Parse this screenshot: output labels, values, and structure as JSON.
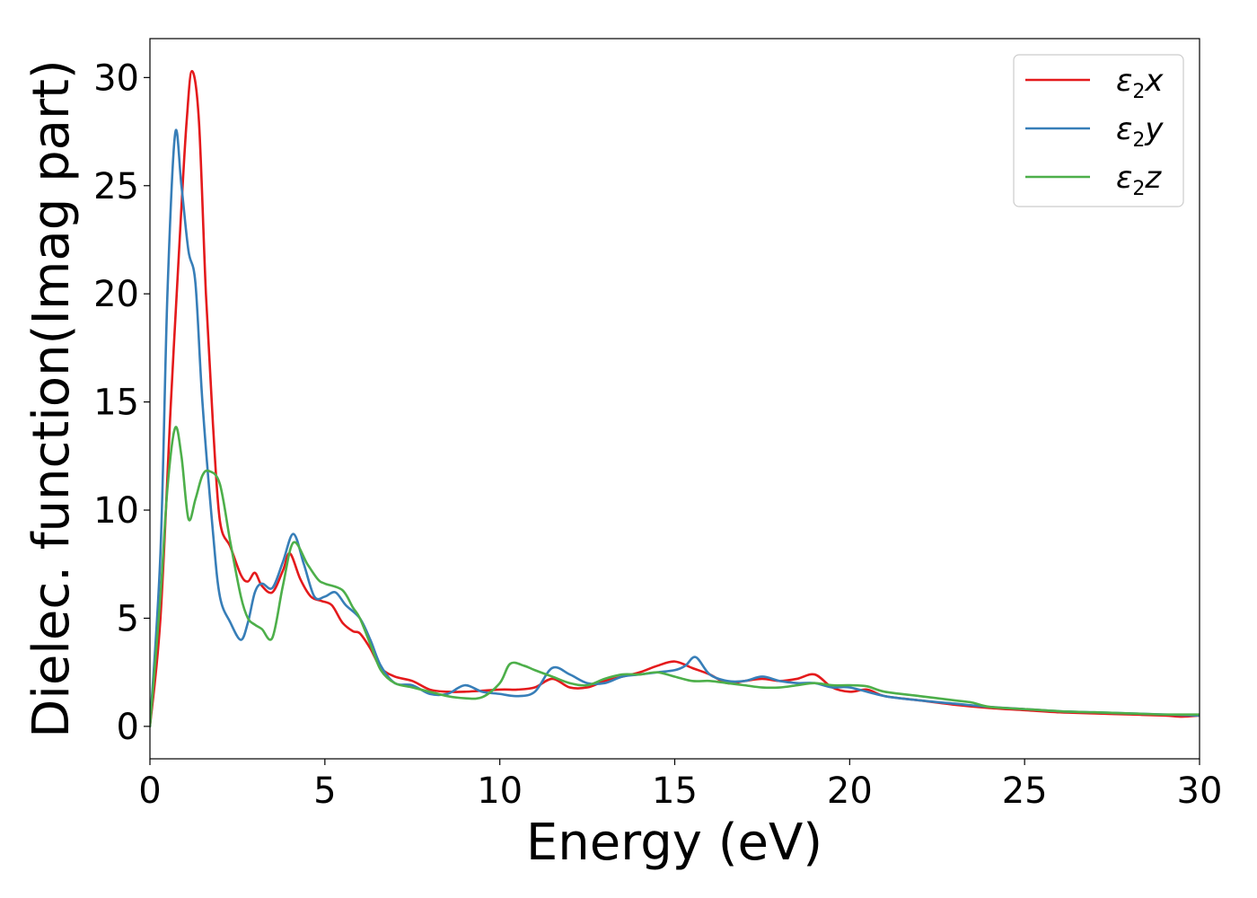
{
  "chart_data": {
    "type": "line",
    "title": "",
    "xlabel": "Energy (eV)",
    "ylabel": "Dielec. function(Imag part)",
    "xlim": [
      0,
      30
    ],
    "ylim": [
      -1.5,
      31.8
    ],
    "xticks": [
      0,
      5,
      10,
      15,
      20,
      25,
      30
    ],
    "yticks": [
      0,
      5,
      10,
      15,
      20,
      25,
      30
    ],
    "grid": false,
    "legend_position": "top-right",
    "legend": [
      {
        "base": "ε",
        "sub": "2",
        "comp": "x"
      },
      {
        "base": "ε",
        "sub": "2",
        "comp": "y"
      },
      {
        "base": "ε",
        "sub": "2",
        "comp": "z"
      }
    ],
    "series": [
      {
        "color": "#e41a1c",
        "x": [
          0,
          0.3,
          0.6,
          0.9,
          1.05,
          1.2,
          1.4,
          1.6,
          1.8,
          2.0,
          2.3,
          2.6,
          2.8,
          3.0,
          3.2,
          3.5,
          3.8,
          4.0,
          4.3,
          4.6,
          4.9,
          5.2,
          5.5,
          5.8,
          6.0,
          6.3,
          6.6,
          7.0,
          7.5,
          8.0,
          8.5,
          9.0,
          10.0,
          10.5,
          11.0,
          11.5,
          12.0,
          12.5,
          13.0,
          13.5,
          14.0,
          14.5,
          15.0,
          15.5,
          16.0,
          16.5,
          17.0,
          17.5,
          18.0,
          18.5,
          19.0,
          19.5,
          20.0,
          20.5,
          21.0,
          22.0,
          23.0,
          24.0,
          25.0,
          26.0,
          27.0,
          28.0,
          29.0,
          29.5,
          30.0
        ],
        "y": [
          0,
          5,
          15,
          24,
          28,
          30.3,
          28,
          20,
          14,
          9.5,
          8.3,
          7,
          6.7,
          7.1,
          6.5,
          6.2,
          7.2,
          8.0,
          6.8,
          6.0,
          5.8,
          5.6,
          4.8,
          4.4,
          4.3,
          3.6,
          2.7,
          2.3,
          2.1,
          1.7,
          1.6,
          1.6,
          1.7,
          1.7,
          1.8,
          2.2,
          1.8,
          1.8,
          2.1,
          2.3,
          2.5,
          2.8,
          3.0,
          2.7,
          2.4,
          2.0,
          2.1,
          2.2,
          2.1,
          2.2,
          2.4,
          1.8,
          1.6,
          1.7,
          1.4,
          1.2,
          1.0,
          0.85,
          0.75,
          0.65,
          0.6,
          0.55,
          0.5,
          0.45,
          0.5
        ]
      },
      {
        "color": "#377eb8",
        "x": [
          0,
          0.3,
          0.5,
          0.72,
          0.9,
          1.1,
          1.3,
          1.5,
          1.8,
          2.0,
          2.3,
          2.6,
          2.8,
          3.0,
          3.2,
          3.5,
          3.8,
          4.1,
          4.4,
          4.7,
          5.0,
          5.3,
          5.6,
          6.0,
          6.3,
          6.6,
          7.0,
          7.5,
          8.0,
          8.5,
          9.0,
          9.5,
          10.0,
          10.5,
          11.0,
          11.5,
          12.0,
          12.5,
          13.0,
          13.5,
          14.0,
          14.5,
          15.0,
          15.3,
          15.6,
          16.0,
          16.5,
          17.0,
          17.5,
          18.0,
          18.5,
          19.0,
          19.5,
          20.0,
          21.0,
          22.0,
          23.0,
          24.0,
          25.0,
          26.0,
          27.0,
          28.0,
          29.0,
          30.0
        ],
        "y": [
          0,
          8,
          20,
          27.4,
          25,
          22,
          20.5,
          15,
          9,
          6,
          4.8,
          4.0,
          4.8,
          6.2,
          6.6,
          6.4,
          7.6,
          8.9,
          7.5,
          6.0,
          6.0,
          6.2,
          5.6,
          5.0,
          4.0,
          2.8,
          2.0,
          1.9,
          1.5,
          1.5,
          1.9,
          1.6,
          1.5,
          1.4,
          1.6,
          2.7,
          2.4,
          2.0,
          2.0,
          2.3,
          2.4,
          2.5,
          2.6,
          2.8,
          3.2,
          2.4,
          2.1,
          2.1,
          2.3,
          2.1,
          2.0,
          2.0,
          1.8,
          1.8,
          1.4,
          1.2,
          1.05,
          0.9,
          0.8,
          0.7,
          0.65,
          0.6,
          0.55,
          0.5
        ]
      },
      {
        "color": "#4daf4a",
        "x": [
          0,
          0.3,
          0.5,
          0.72,
          0.9,
          1.1,
          1.3,
          1.5,
          1.7,
          2.0,
          2.3,
          2.6,
          2.8,
          3.0,
          3.2,
          3.5,
          3.8,
          4.1,
          4.5,
          4.8,
          5.0,
          5.5,
          5.8,
          6.0,
          6.3,
          6.6,
          7.0,
          7.5,
          8.0,
          8.5,
          9.0,
          9.5,
          10.0,
          10.3,
          10.7,
          11.0,
          11.5,
          12.0,
          12.5,
          13.0,
          13.5,
          14.0,
          14.5,
          15.0,
          15.5,
          16.0,
          16.5,
          17.0,
          17.5,
          18.0,
          18.5,
          19.0,
          19.5,
          20.0,
          20.5,
          21.0,
          22.0,
          23.0,
          23.5,
          24.0,
          25.0,
          26.0,
          27.0,
          28.0,
          29.0,
          30.0
        ],
        "y": [
          0,
          6,
          11,
          13.8,
          12.5,
          9.6,
          10.5,
          11.6,
          11.8,
          11.2,
          8.5,
          6.0,
          5.0,
          4.7,
          4.5,
          4.1,
          6.5,
          8.5,
          7.5,
          6.8,
          6.6,
          6.3,
          5.5,
          5.0,
          3.8,
          2.6,
          2.0,
          1.8,
          1.6,
          1.4,
          1.3,
          1.35,
          2.0,
          2.9,
          2.8,
          2.6,
          2.3,
          2.0,
          1.9,
          2.2,
          2.4,
          2.4,
          2.5,
          2.3,
          2.1,
          2.1,
          2.0,
          1.9,
          1.8,
          1.8,
          1.9,
          2.0,
          1.9,
          1.9,
          1.85,
          1.6,
          1.4,
          1.2,
          1.1,
          0.9,
          0.8,
          0.7,
          0.65,
          0.6,
          0.55,
          0.55
        ]
      }
    ]
  }
}
